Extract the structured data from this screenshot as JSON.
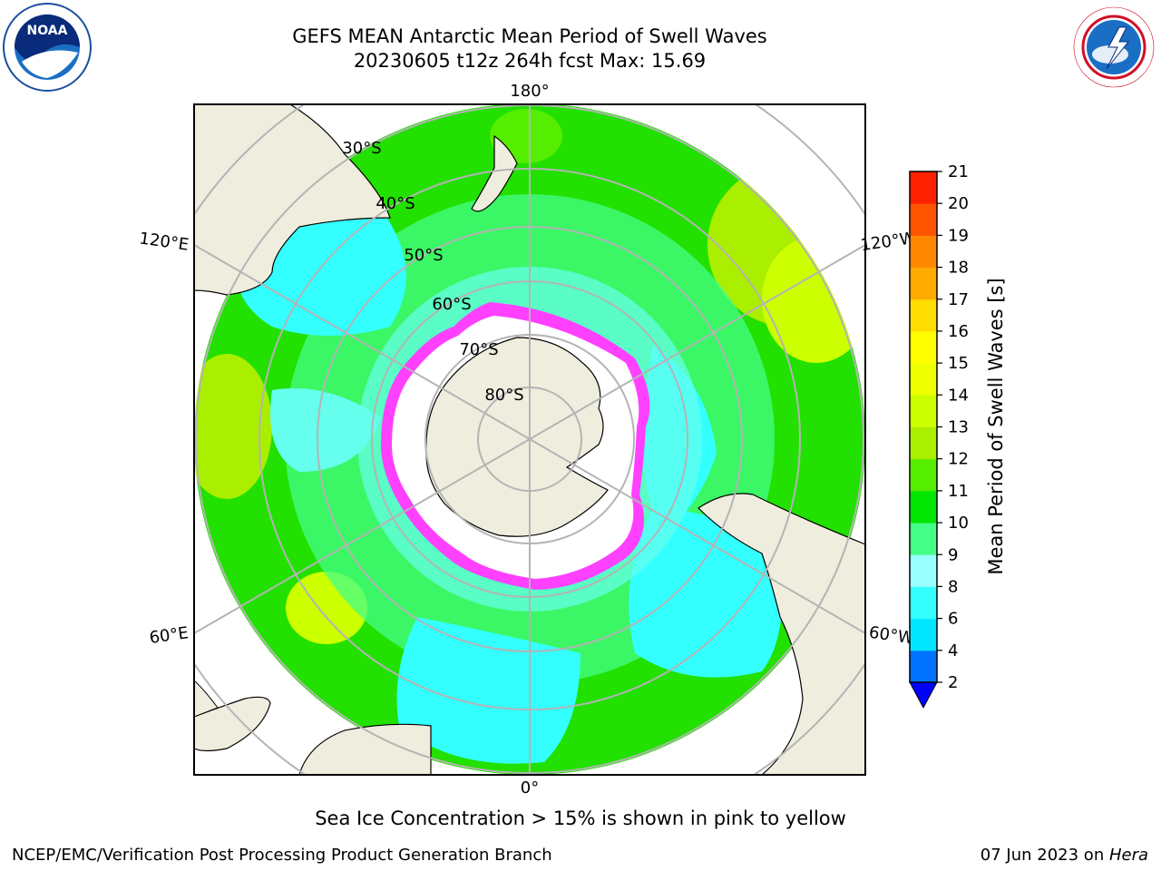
{
  "header": {
    "title_line1": "GEFS MEAN Antarctic Mean Period of Swell Waves",
    "title_line2": "20230605 t12z 264h fcst   Max: 15.69"
  },
  "logos": {
    "left": {
      "icon": "noaa-logo",
      "text": "NOAA"
    },
    "right": {
      "icon": "nws-logo",
      "text": "NATIONAL WEATHER SERVICE"
    }
  },
  "map": {
    "projection": "south-polar-stereographic",
    "longitude_labels": [
      "180°",
      "120°E",
      "120°W",
      "60°E",
      "60°W",
      "0°"
    ],
    "latitude_labels": [
      "30°S",
      "40°S",
      "50°S",
      "60°S",
      "70°S",
      "80°S"
    ],
    "land_color": "#efedde",
    "grid_color": "#b4b4b4",
    "sea_ice_color": "#ff40ff"
  },
  "colorbar": {
    "label": "Mean Period of Swell Waves [s]",
    "ticks": [
      "2",
      "4",
      "6",
      "8",
      "9",
      "10",
      "11",
      "12",
      "13",
      "14",
      "15",
      "16",
      "17",
      "18",
      "19",
      "20",
      "21"
    ],
    "colors": [
      "#0073ff",
      "#00e6ff",
      "#33ffff",
      "#99ffff",
      "#44ff88",
      "#00e600",
      "#55ee00",
      "#aaee00",
      "#ccff00",
      "#eeff00",
      "#ffff00",
      "#ffdd00",
      "#ffaa00",
      "#ff8800",
      "#ff5500",
      "#ff2200",
      "#ff0000"
    ],
    "under_color": "#0000ff"
  },
  "footer": {
    "note": "Sea Ice Concentration > 15% is shown in pink to yellow",
    "left": "NCEP/EMC/Verification Post Processing Product Generation Branch",
    "right_prefix": "07 Jun 2023 on ",
    "right_host": "Hera"
  }
}
